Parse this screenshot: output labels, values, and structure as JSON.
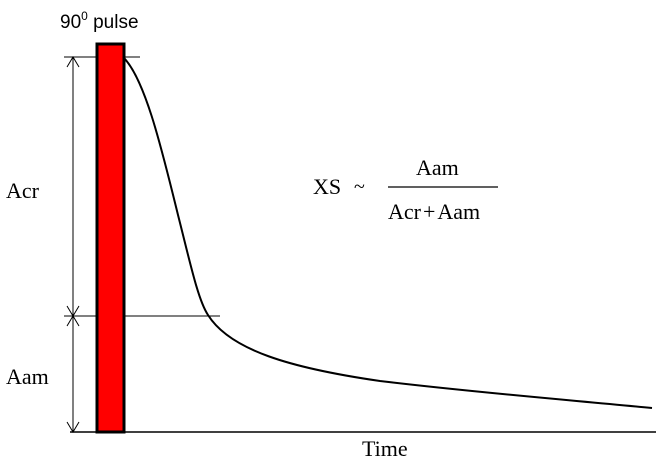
{
  "pulse": {
    "label_main": "90",
    "label_sup": "0",
    "label_rest": " pulse",
    "fill_color": "#ff0000",
    "stroke_color": "#000000"
  },
  "labels": {
    "acr": "Acr",
    "aam": "Aam",
    "time": "Time"
  },
  "formula": {
    "lhs": "XS",
    "relation": "~",
    "numerator": "Aam",
    "denominator_left": "Acr",
    "denominator_op": "+",
    "denominator_right": "Aam"
  }
}
